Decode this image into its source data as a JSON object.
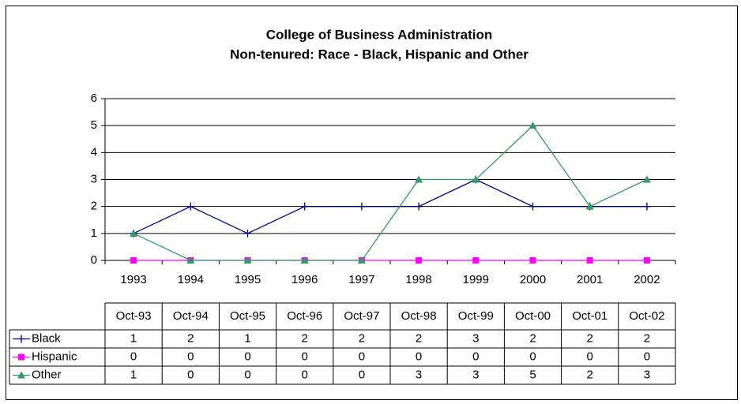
{
  "chart_data": {
    "type": "line",
    "title": "College of Business Administration",
    "subtitle": "Non-tenured: Race - Black, Hispanic and Other",
    "categories": [
      "1993",
      "1994",
      "1995",
      "1996",
      "1997",
      "1998",
      "1999",
      "2000",
      "2001",
      "2002"
    ],
    "table_columns": [
      "Oct-93",
      "Oct-94",
      "Oct-95",
      "Oct-96",
      "Oct-97",
      "Oct-98",
      "Oct-99",
      "Oct-00",
      "Oct-01",
      "Oct-02"
    ],
    "series": [
      {
        "name": "Black",
        "color": "#000080",
        "marker": "plus",
        "values": [
          1,
          2,
          1,
          2,
          2,
          2,
          3,
          2,
          2,
          2
        ]
      },
      {
        "name": "Hispanic",
        "color": "#ff00ff",
        "marker": "square",
        "values": [
          0,
          0,
          0,
          0,
          0,
          0,
          0,
          0,
          0,
          0
        ]
      },
      {
        "name": "Other",
        "color": "#339966",
        "marker": "triangle",
        "values": [
          1,
          0,
          0,
          0,
          0,
          3,
          3,
          5,
          2,
          3
        ]
      }
    ],
    "ylim": [
      0,
      6
    ],
    "yticks": [
      0,
      1,
      2,
      3,
      4,
      5,
      6
    ],
    "grid": true
  }
}
